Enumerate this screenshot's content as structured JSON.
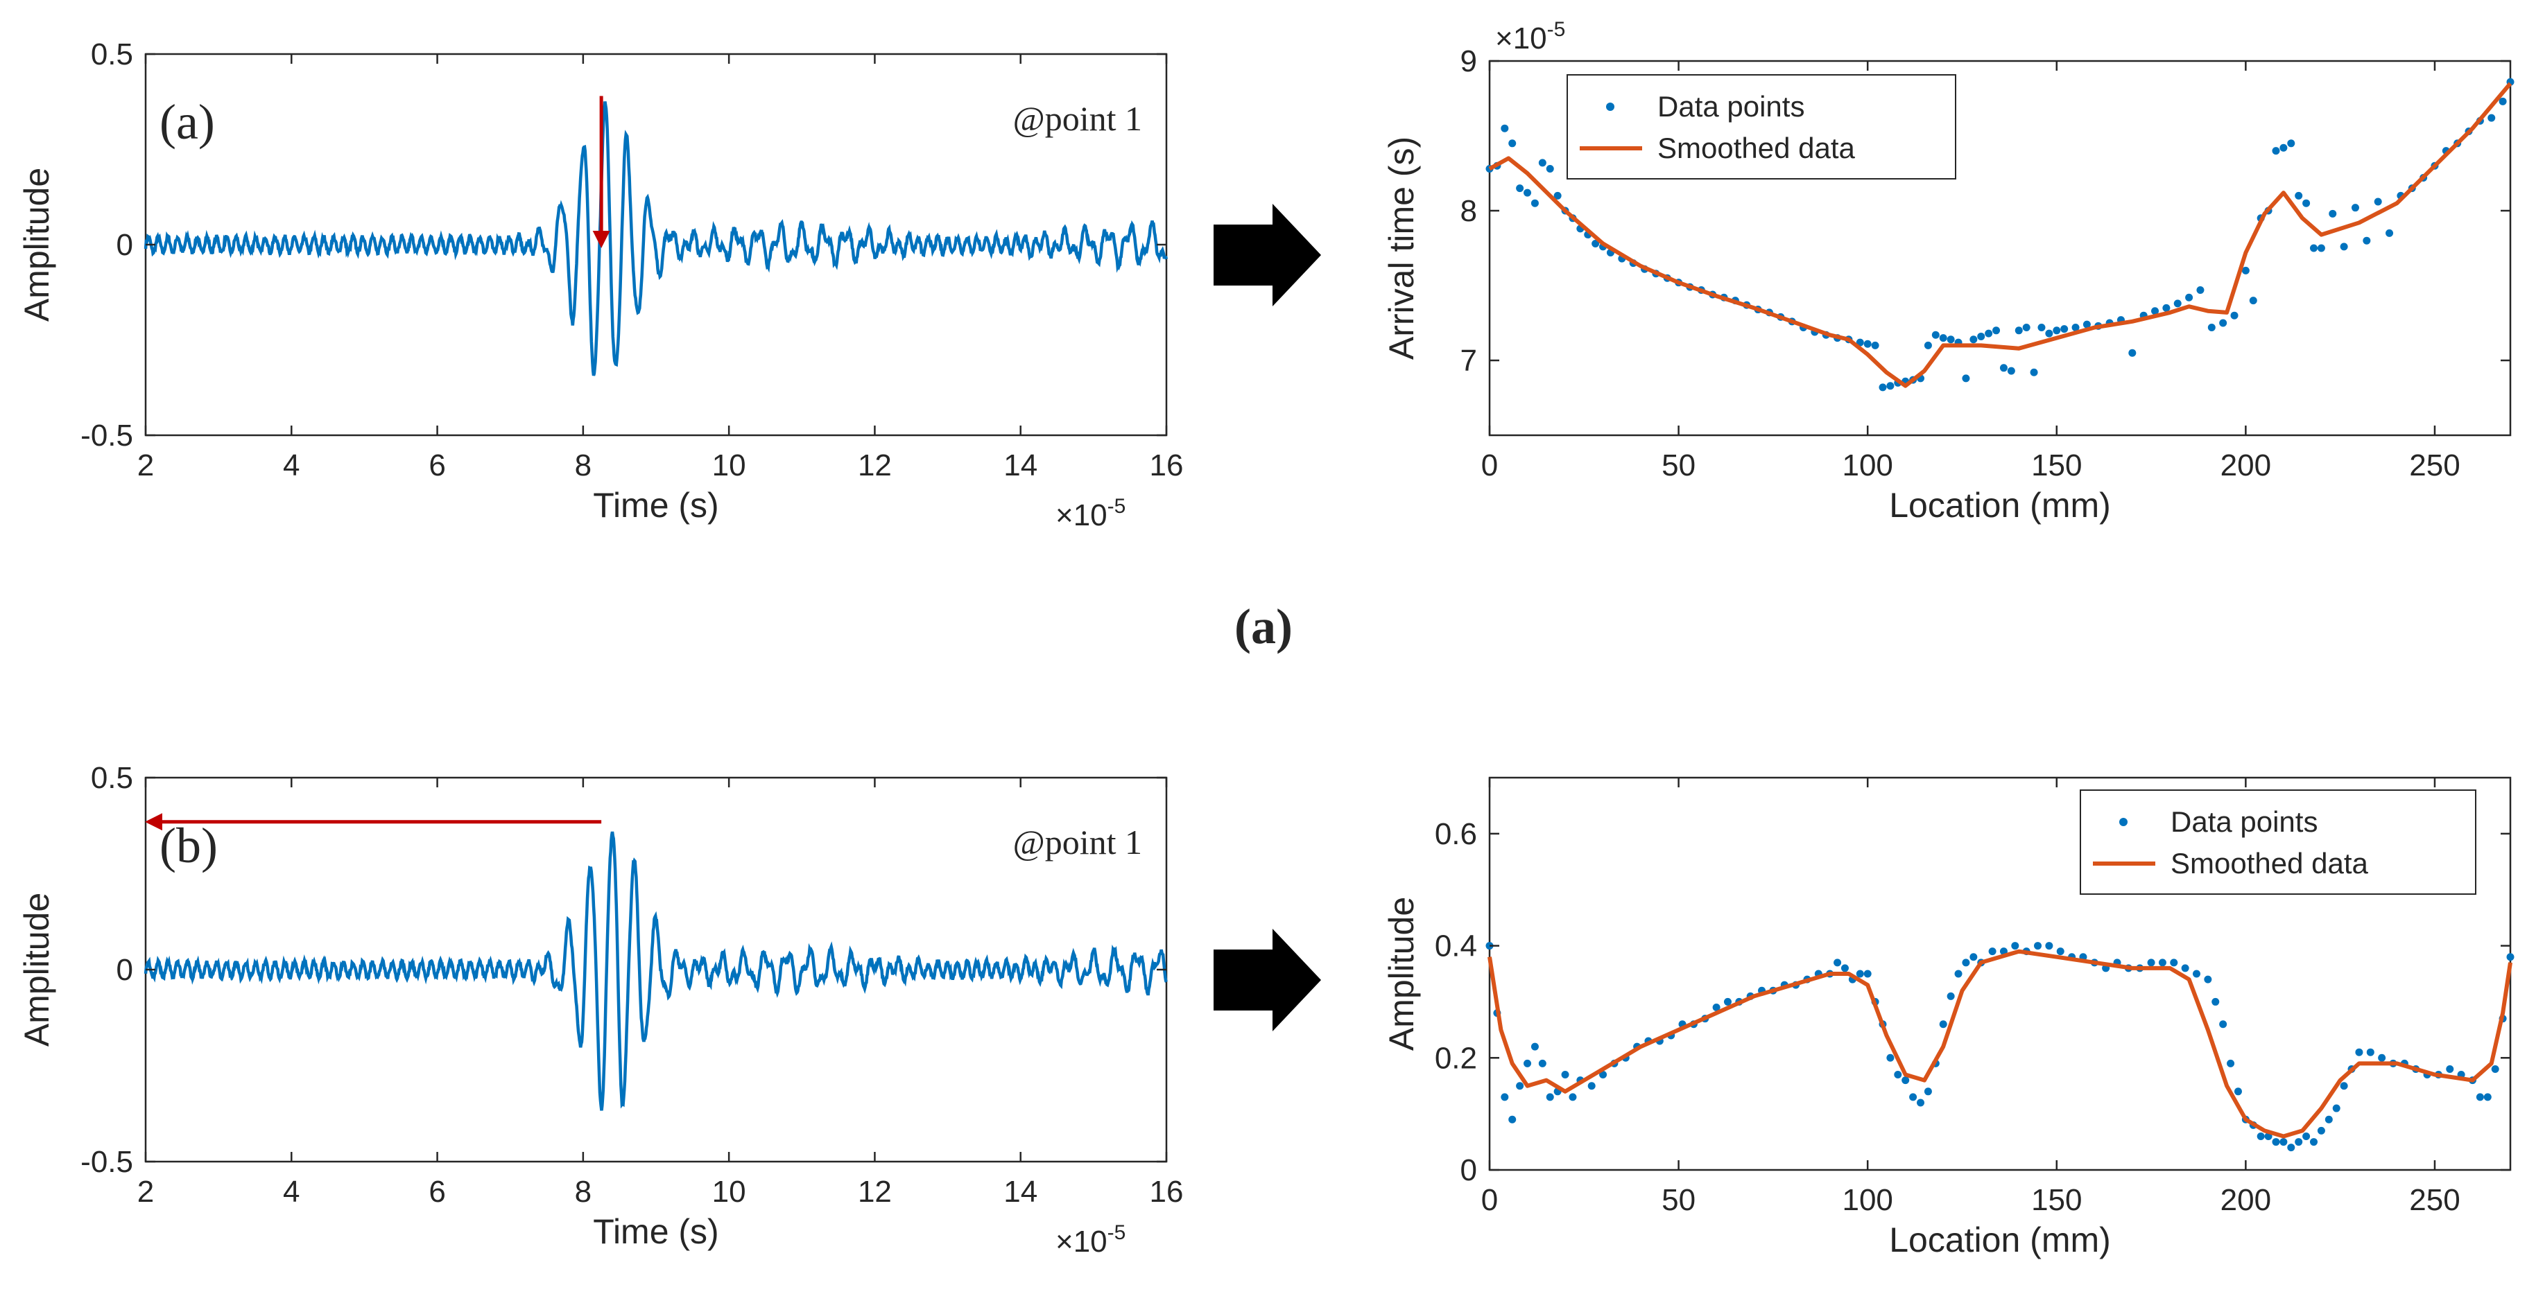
{
  "figure_caption_a": "(a)",
  "colors": {
    "signal": "#0072BD",
    "smoothed": "#D95319",
    "marker": "#0072BD",
    "annotation_arrow": "#C00000",
    "axes": "#262626",
    "flow_arrow": "#000000"
  },
  "chart_data": [
    {
      "id": "waveform-a",
      "type": "line",
      "panel_label": "(a)",
      "annotation": "@point 1",
      "xlabel": "Time (s)",
      "ylabel": "Amplitude",
      "x_exponent": "×10",
      "x_exponent_power": "-5",
      "xlim": [
        2,
        16
      ],
      "ylim": [
        -0.5,
        0.5
      ],
      "xticks": [
        "2",
        "4",
        "6",
        "8",
        "10",
        "12",
        "14",
        "16"
      ],
      "yticks": [
        "-0.5",
        "0",
        "0.5"
      ],
      "ytick_values": [
        -0.5,
        0,
        0.5
      ],
      "arrow": {
        "direction": "down",
        "x": 8.25,
        "from_y": 0.39,
        "to_y": 0.0
      },
      "signal": {
        "packet_center": 8.3,
        "packet_width": 0.55,
        "packet_amplitude": 0.36,
        "period": 0.3,
        "noise_amplitude": 0.02,
        "tail_amplitude": 0.04
      }
    },
    {
      "id": "arrival-time",
      "type": "scatter",
      "title_exponent": "×10",
      "title_exponent_power": "-5",
      "xlabel": "Location (mm)",
      "ylabel": "Arrival time (s)",
      "xlim": [
        0,
        270
      ],
      "ylim": [
        6.5,
        9
      ],
      "xticks": [
        "0",
        "50",
        "100",
        "150",
        "200",
        "250"
      ],
      "yticks": [
        "7",
        "8",
        "9"
      ],
      "legend": [
        "Data points",
        "Smoothed data"
      ],
      "legend_position": "top-left",
      "smoothed": {
        "x": [
          0,
          5,
          10,
          20,
          30,
          40,
          50,
          60,
          70,
          80,
          90,
          95,
          100,
          105,
          110,
          115,
          120,
          130,
          140,
          150,
          160,
          170,
          180,
          185,
          190,
          195,
          200,
          205,
          210,
          215,
          220,
          230,
          240,
          250,
          260,
          270
        ],
        "y": [
          8.28,
          8.35,
          8.25,
          8.0,
          7.78,
          7.63,
          7.52,
          7.43,
          7.35,
          7.26,
          7.17,
          7.14,
          7.04,
          6.92,
          6.83,
          6.93,
          7.1,
          7.1,
          7.08,
          7.15,
          7.22,
          7.26,
          7.32,
          7.36,
          7.33,
          7.32,
          7.72,
          7.98,
          8.12,
          7.95,
          7.84,
          7.92,
          8.05,
          8.3,
          8.55,
          8.85
        ]
      },
      "points": {
        "x": [
          0,
          2,
          4,
          6,
          8,
          10,
          12,
          14,
          16,
          18,
          20,
          22,
          24,
          26,
          28,
          30,
          32,
          35,
          38,
          41,
          44,
          47,
          50,
          53,
          56,
          59,
          62,
          65,
          68,
          71,
          74,
          77,
          80,
          83,
          86,
          89,
          92,
          95,
          98,
          100,
          102,
          104,
          106,
          108,
          110,
          112,
          114,
          116,
          118,
          120,
          122,
          124,
          126,
          128,
          130,
          132,
          134,
          136,
          138,
          140,
          142,
          144,
          146,
          148,
          150,
          152,
          155,
          158,
          161,
          164,
          167,
          170,
          173,
          176,
          179,
          182,
          185,
          188,
          191,
          194,
          197,
          200,
          202,
          204,
          206,
          208,
          210,
          212,
          214,
          216,
          218,
          220,
          223,
          226,
          229,
          232,
          235,
          238,
          241,
          244,
          247,
          250,
          253,
          256,
          259,
          262,
          265,
          268,
          270
        ],
        "y": [
          8.28,
          8.3,
          8.55,
          8.45,
          8.15,
          8.12,
          8.05,
          8.32,
          8.28,
          8.1,
          8.0,
          7.95,
          7.88,
          7.84,
          7.78,
          7.76,
          7.72,
          7.68,
          7.65,
          7.61,
          7.58,
          7.55,
          7.52,
          7.49,
          7.47,
          7.44,
          7.42,
          7.4,
          7.37,
          7.34,
          7.32,
          7.29,
          7.26,
          7.22,
          7.19,
          7.17,
          7.15,
          7.14,
          7.12,
          7.11,
          7.1,
          6.82,
          6.83,
          6.85,
          6.86,
          6.87,
          6.88,
          7.1,
          7.17,
          7.15,
          7.14,
          7.12,
          6.88,
          7.14,
          7.16,
          7.18,
          7.2,
          6.95,
          6.93,
          7.2,
          7.22,
          6.92,
          7.22,
          7.18,
          7.2,
          7.21,
          7.22,
          7.24,
          7.23,
          7.25,
          7.27,
          7.05,
          7.3,
          7.33,
          7.35,
          7.38,
          7.42,
          7.47,
          7.22,
          7.25,
          7.3,
          7.6,
          7.4,
          7.95,
          8.0,
          8.4,
          8.42,
          8.45,
          8.1,
          8.05,
          7.75,
          7.75,
          7.98,
          7.76,
          8.02,
          7.8,
          8.06,
          7.85,
          8.1,
          8.15,
          8.22,
          8.3,
          8.4,
          8.45,
          8.53,
          8.6,
          8.62,
          8.73,
          8.86
        ]
      }
    },
    {
      "id": "waveform-b",
      "type": "line",
      "panel_label": "(b)",
      "annotation": "@point 1",
      "xlabel": "Time (s)",
      "ylabel": "Amplitude",
      "x_exponent": "×10",
      "x_exponent_power": "-5",
      "xlim": [
        2,
        16
      ],
      "ylim": [
        -0.5,
        0.5
      ],
      "xticks": [
        "2",
        "4",
        "6",
        "8",
        "10",
        "12",
        "14",
        "16"
      ],
      "yticks": [
        "-0.5",
        "0",
        "0.5"
      ],
      "ytick_values": [
        -0.5,
        0,
        0.5
      ],
      "arrow": {
        "direction": "left",
        "y": 0.385,
        "from_x": 8.25,
        "to_x": 2.0
      },
      "signal": {
        "packet_center": 8.4,
        "packet_width": 0.55,
        "packet_amplitude": 0.37,
        "period": 0.3,
        "noise_amplitude": 0.02,
        "tail_amplitude": 0.04
      }
    },
    {
      "id": "amplitude-profile",
      "type": "scatter",
      "xlabel": "Location (mm)",
      "ylabel": "Amplitude",
      "xlim": [
        0,
        270
      ],
      "ylim": [
        0,
        0.7
      ],
      "xticks": [
        "0",
        "50",
        "100",
        "150",
        "200",
        "250"
      ],
      "yticks": [
        "0",
        "0.2",
        "0.4",
        "0.6"
      ],
      "legend": [
        "Data points",
        "Smoothed data"
      ],
      "legend_position": "top-right",
      "smoothed": {
        "x": [
          0,
          3,
          6,
          10,
          15,
          20,
          30,
          40,
          50,
          60,
          70,
          80,
          90,
          95,
          100,
          105,
          110,
          115,
          120,
          125,
          130,
          140,
          150,
          160,
          170,
          180,
          185,
          190,
          195,
          200,
          205,
          210,
          215,
          220,
          225,
          230,
          240,
          250,
          260,
          265,
          268,
          270
        ],
        "y": [
          0.38,
          0.25,
          0.19,
          0.15,
          0.16,
          0.14,
          0.18,
          0.22,
          0.25,
          0.28,
          0.31,
          0.33,
          0.35,
          0.35,
          0.33,
          0.24,
          0.17,
          0.16,
          0.22,
          0.32,
          0.37,
          0.39,
          0.38,
          0.37,
          0.36,
          0.36,
          0.34,
          0.25,
          0.15,
          0.09,
          0.07,
          0.06,
          0.07,
          0.11,
          0.16,
          0.19,
          0.19,
          0.17,
          0.16,
          0.19,
          0.28,
          0.37
        ]
      },
      "points": {
        "x": [
          0,
          2,
          4,
          6,
          8,
          10,
          12,
          14,
          16,
          18,
          20,
          22,
          24,
          27,
          30,
          33,
          36,
          39,
          42,
          45,
          48,
          51,
          54,
          57,
          60,
          63,
          66,
          69,
          72,
          75,
          78,
          81,
          84,
          87,
          90,
          92,
          94,
          96,
          98,
          100,
          102,
          104,
          106,
          108,
          110,
          112,
          114,
          116,
          118,
          120,
          122,
          124,
          126,
          128,
          130,
          133,
          136,
          139,
          142,
          145,
          148,
          151,
          154,
          157,
          160,
          163,
          166,
          169,
          172,
          175,
          178,
          181,
          184,
          187,
          190,
          192,
          194,
          196,
          198,
          200,
          202,
          204,
          206,
          208,
          210,
          212,
          214,
          216,
          218,
          220,
          222,
          224,
          226,
          228,
          230,
          233,
          236,
          239,
          242,
          245,
          248,
          251,
          254,
          257,
          260,
          262,
          264,
          266,
          268,
          270
        ],
        "y": [
          0.4,
          0.28,
          0.13,
          0.09,
          0.15,
          0.19,
          0.22,
          0.19,
          0.13,
          0.14,
          0.17,
          0.13,
          0.16,
          0.15,
          0.17,
          0.19,
          0.2,
          0.22,
          0.23,
          0.23,
          0.24,
          0.26,
          0.26,
          0.27,
          0.29,
          0.3,
          0.3,
          0.31,
          0.32,
          0.32,
          0.33,
          0.33,
          0.34,
          0.35,
          0.35,
          0.37,
          0.36,
          0.34,
          0.35,
          0.35,
          0.3,
          0.26,
          0.2,
          0.17,
          0.16,
          0.13,
          0.12,
          0.14,
          0.19,
          0.26,
          0.31,
          0.35,
          0.37,
          0.38,
          0.37,
          0.39,
          0.39,
          0.4,
          0.39,
          0.4,
          0.4,
          0.39,
          0.38,
          0.38,
          0.37,
          0.36,
          0.37,
          0.36,
          0.36,
          0.37,
          0.37,
          0.37,
          0.36,
          0.35,
          0.34,
          0.3,
          0.26,
          0.19,
          0.14,
          0.09,
          0.08,
          0.06,
          0.06,
          0.05,
          0.05,
          0.04,
          0.05,
          0.06,
          0.05,
          0.07,
          0.09,
          0.11,
          0.15,
          0.18,
          0.21,
          0.21,
          0.2,
          0.19,
          0.19,
          0.18,
          0.17,
          0.17,
          0.18,
          0.17,
          0.16,
          0.13,
          0.13,
          0.18,
          0.27,
          0.38
        ]
      }
    }
  ]
}
